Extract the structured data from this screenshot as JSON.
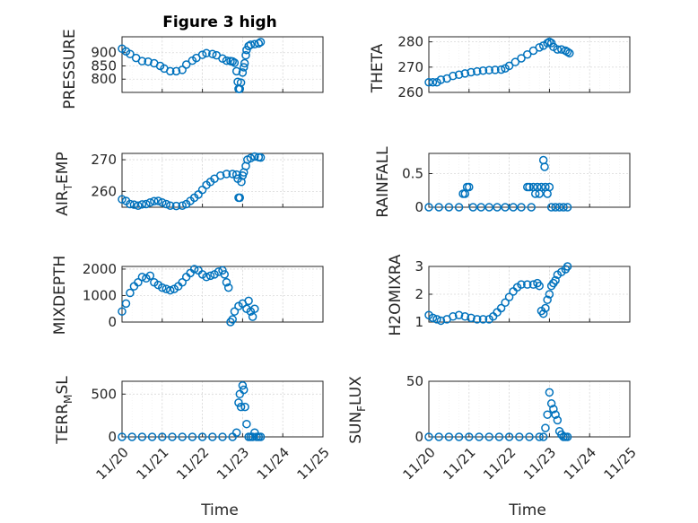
{
  "title": "Figure 3 high",
  "time_label": "Time",
  "colors": {
    "marker": "#0072BD",
    "axis": "#262626",
    "grid": "#d9d9d9"
  },
  "chart_data": [
    {
      "type": "scatter",
      "title": "Figure 3 high",
      "ylabel": "PRESSURE",
      "xlim": [
        0,
        5
      ],
      "ylim": [
        750,
        960
      ],
      "yticks": [
        800,
        850,
        900
      ],
      "xticks": [
        0,
        1,
        2,
        3,
        4,
        5
      ],
      "xticklabels": [],
      "points": [
        [
          0,
          915
        ],
        [
          0.1,
          905
        ],
        [
          0.2,
          895
        ],
        [
          0.35,
          880
        ],
        [
          0.5,
          868
        ],
        [
          0.65,
          866
        ],
        [
          0.8,
          860
        ],
        [
          0.95,
          850
        ],
        [
          1.05,
          840
        ],
        [
          1.2,
          830
        ],
        [
          1.35,
          830
        ],
        [
          1.5,
          835
        ],
        [
          1.6,
          855
        ],
        [
          1.75,
          870
        ],
        [
          1.85,
          880
        ],
        [
          2.0,
          892
        ],
        [
          2.1,
          898
        ],
        [
          2.25,
          895
        ],
        [
          2.35,
          890
        ],
        [
          2.5,
          878
        ],
        [
          2.6,
          870
        ],
        [
          2.7,
          868
        ],
        [
          2.75,
          867
        ],
        [
          2.8,
          862
        ],
        [
          2.85,
          830
        ],
        [
          2.88,
          790
        ],
        [
          2.9,
          763
        ],
        [
          2.93,
          763
        ],
        [
          2.96,
          787
        ],
        [
          3.0,
          825
        ],
        [
          3.03,
          845
        ],
        [
          3.05,
          860
        ],
        [
          3.08,
          890
        ],
        [
          3.1,
          910
        ],
        [
          3.15,
          925
        ],
        [
          3.2,
          930
        ],
        [
          3.3,
          932
        ],
        [
          3.4,
          935
        ],
        [
          3.45,
          940
        ]
      ]
    },
    {
      "type": "scatter",
      "ylabel": "THETA",
      "xlim": [
        0,
        5
      ],
      "ylim": [
        260,
        282
      ],
      "yticks": [
        260,
        270,
        280
      ],
      "xticks": [
        0,
        1,
        2,
        3,
        4,
        5
      ],
      "xticklabels": [],
      "points": [
        [
          0,
          264
        ],
        [
          0.1,
          264
        ],
        [
          0.2,
          264
        ],
        [
          0.3,
          265
        ],
        [
          0.45,
          265.5
        ],
        [
          0.6,
          266.5
        ],
        [
          0.75,
          267
        ],
        [
          0.9,
          267.5
        ],
        [
          1.05,
          268
        ],
        [
          1.2,
          268.3
        ],
        [
          1.35,
          268.6
        ],
        [
          1.5,
          268.8
        ],
        [
          1.65,
          268.9
        ],
        [
          1.8,
          269
        ],
        [
          1.9,
          269.5
        ],
        [
          2.0,
          270.5
        ],
        [
          2.15,
          272
        ],
        [
          2.3,
          273.5
        ],
        [
          2.45,
          275
        ],
        [
          2.6,
          276.5
        ],
        [
          2.75,
          277.8
        ],
        [
          2.85,
          278.5
        ],
        [
          2.95,
          279.5
        ],
        [
          3.0,
          280
        ],
        [
          3.05,
          279.5
        ],
        [
          3.1,
          278
        ],
        [
          3.2,
          277
        ],
        [
          3.3,
          277
        ],
        [
          3.4,
          276.5
        ],
        [
          3.45,
          276
        ],
        [
          3.5,
          275.5
        ]
      ]
    },
    {
      "type": "scatter",
      "ylabel": "AIR_TEMP",
      "xlim": [
        0,
        5
      ],
      "ylim": [
        255,
        272
      ],
      "yticks": [
        260,
        270
      ],
      "xticks": [
        0,
        1,
        2,
        3,
        4,
        5
      ],
      "xticklabels": [],
      "points": [
        [
          0,
          257.5
        ],
        [
          0.1,
          257
        ],
        [
          0.2,
          256
        ],
        [
          0.3,
          255.8
        ],
        [
          0.4,
          255.5
        ],
        [
          0.5,
          255.9
        ],
        [
          0.6,
          256
        ],
        [
          0.7,
          256.5
        ],
        [
          0.8,
          256.9
        ],
        [
          0.9,
          257
        ],
        [
          1.0,
          256.5
        ],
        [
          1.1,
          256
        ],
        [
          1.2,
          255.5
        ],
        [
          1.35,
          255.4
        ],
        [
          1.5,
          255.5
        ],
        [
          1.6,
          256
        ],
        [
          1.7,
          257
        ],
        [
          1.8,
          258
        ],
        [
          1.9,
          259
        ],
        [
          2.0,
          260.5
        ],
        [
          2.1,
          262
        ],
        [
          2.2,
          263
        ],
        [
          2.3,
          264
        ],
        [
          2.45,
          265
        ],
        [
          2.6,
          265.5
        ],
        [
          2.75,
          265.5
        ],
        [
          2.85,
          265.3
        ],
        [
          2.88,
          264
        ],
        [
          2.9,
          258
        ],
        [
          2.93,
          258
        ],
        [
          2.97,
          263
        ],
        [
          3.0,
          265
        ],
        [
          3.03,
          266
        ],
        [
          3.08,
          268
        ],
        [
          3.12,
          270
        ],
        [
          3.2,
          270.5
        ],
        [
          3.3,
          271
        ],
        [
          3.4,
          270.8
        ],
        [
          3.45,
          270.7
        ]
      ]
    },
    {
      "type": "scatter",
      "ylabel": "RAINFALL",
      "xlim": [
        0,
        5
      ],
      "ylim": [
        0,
        0.8
      ],
      "yticks": [
        0,
        0.5
      ],
      "xticks": [
        0,
        1,
        2,
        3,
        4,
        5
      ],
      "xticklabels": [],
      "points": [
        [
          0,
          0
        ],
        [
          0.25,
          0
        ],
        [
          0.5,
          0
        ],
        [
          0.75,
          0
        ],
        [
          0.85,
          0.2
        ],
        [
          0.9,
          0.2
        ],
        [
          0.95,
          0.3
        ],
        [
          1.0,
          0.3
        ],
        [
          1.1,
          0
        ],
        [
          1.3,
          0
        ],
        [
          1.5,
          0
        ],
        [
          1.7,
          0
        ],
        [
          1.9,
          0
        ],
        [
          2.1,
          0
        ],
        [
          2.3,
          0
        ],
        [
          2.45,
          0.3
        ],
        [
          2.5,
          0.3
        ],
        [
          2.55,
          0
        ],
        [
          2.6,
          0.3
        ],
        [
          2.65,
          0.2
        ],
        [
          2.7,
          0.3
        ],
        [
          2.75,
          0.2
        ],
        [
          2.8,
          0.3
        ],
        [
          2.85,
          0.7
        ],
        [
          2.88,
          0.6
        ],
        [
          2.9,
          0.3
        ],
        [
          2.95,
          0.2
        ],
        [
          3.0,
          0.3
        ],
        [
          3.05,
          0
        ],
        [
          3.15,
          0
        ],
        [
          3.25,
          0
        ],
        [
          3.35,
          0
        ],
        [
          3.45,
          0
        ]
      ]
    },
    {
      "type": "scatter",
      "ylabel": "MIXDEPTH",
      "xlim": [
        0,
        5
      ],
      "ylim": [
        0,
        2100
      ],
      "yticks": [
        0,
        1000,
        2000
      ],
      "xticks": [
        0,
        1,
        2,
        3,
        4,
        5
      ],
      "xticklabels": [],
      "points": [
        [
          0,
          400
        ],
        [
          0.1,
          700
        ],
        [
          0.2,
          1100
        ],
        [
          0.3,
          1350
        ],
        [
          0.4,
          1500
        ],
        [
          0.5,
          1700
        ],
        [
          0.6,
          1650
        ],
        [
          0.7,
          1750
        ],
        [
          0.8,
          1500
        ],
        [
          0.9,
          1400
        ],
        [
          1.0,
          1300
        ],
        [
          1.1,
          1250
        ],
        [
          1.2,
          1200
        ],
        [
          1.3,
          1250
        ],
        [
          1.4,
          1350
        ],
        [
          1.5,
          1500
        ],
        [
          1.6,
          1700
        ],
        [
          1.7,
          1850
        ],
        [
          1.8,
          2000
        ],
        [
          1.9,
          1950
        ],
        [
          2.0,
          1800
        ],
        [
          2.1,
          1700
        ],
        [
          2.2,
          1750
        ],
        [
          2.3,
          1800
        ],
        [
          2.4,
          1900
        ],
        [
          2.5,
          1950
        ],
        [
          2.55,
          1800
        ],
        [
          2.6,
          1500
        ],
        [
          2.65,
          1300
        ],
        [
          2.7,
          0
        ],
        [
          2.75,
          100
        ],
        [
          2.8,
          400
        ],
        [
          2.9,
          600
        ],
        [
          3.0,
          700
        ],
        [
          3.1,
          500
        ],
        [
          3.15,
          800
        ],
        [
          3.2,
          400
        ],
        [
          3.25,
          200
        ],
        [
          3.3,
          500
        ]
      ]
    },
    {
      "type": "scatter",
      "ylabel": "H2OMIXRA",
      "xlim": [
        0,
        5
      ],
      "ylim": [
        1,
        3
      ],
      "yticks": [
        1,
        2,
        3
      ],
      "xticks": [
        0,
        1,
        2,
        3,
        4,
        5
      ],
      "xticklabels": [],
      "points": [
        [
          0,
          1.25
        ],
        [
          0.1,
          1.15
        ],
        [
          0.2,
          1.1
        ],
        [
          0.3,
          1.05
        ],
        [
          0.45,
          1.1
        ],
        [
          0.6,
          1.2
        ],
        [
          0.75,
          1.25
        ],
        [
          0.9,
          1.2
        ],
        [
          1.05,
          1.15
        ],
        [
          1.2,
          1.1
        ],
        [
          1.35,
          1.1
        ],
        [
          1.5,
          1.1
        ],
        [
          1.6,
          1.2
        ],
        [
          1.7,
          1.35
        ],
        [
          1.8,
          1.5
        ],
        [
          1.9,
          1.7
        ],
        [
          2.0,
          1.9
        ],
        [
          2.1,
          2.1
        ],
        [
          2.2,
          2.25
        ],
        [
          2.3,
          2.35
        ],
        [
          2.45,
          2.35
        ],
        [
          2.6,
          2.35
        ],
        [
          2.7,
          2.4
        ],
        [
          2.75,
          2.3
        ],
        [
          2.8,
          1.4
        ],
        [
          2.85,
          1.3
        ],
        [
          2.9,
          1.5
        ],
        [
          2.95,
          1.8
        ],
        [
          3.0,
          2.0
        ],
        [
          3.05,
          2.3
        ],
        [
          3.1,
          2.4
        ],
        [
          3.15,
          2.5
        ],
        [
          3.2,
          2.7
        ],
        [
          3.3,
          2.8
        ],
        [
          3.4,
          2.9
        ],
        [
          3.45,
          3.0
        ]
      ]
    },
    {
      "type": "scatter",
      "ylabel": "TERR_MSL",
      "xlim": [
        0,
        5
      ],
      "ylim": [
        0,
        650
      ],
      "yticks": [
        0,
        500
      ],
      "xticks": [
        0,
        1,
        2,
        3,
        4,
        5
      ],
      "xticklabels": [
        "11/20",
        "11/21",
        "11/22",
        "11/23",
        "11/24",
        "11/25"
      ],
      "points": [
        [
          0,
          0
        ],
        [
          0.25,
          0
        ],
        [
          0.5,
          0
        ],
        [
          0.75,
          0
        ],
        [
          1.0,
          0
        ],
        [
          1.25,
          0
        ],
        [
          1.5,
          0
        ],
        [
          1.75,
          0
        ],
        [
          2.0,
          0
        ],
        [
          2.25,
          0
        ],
        [
          2.5,
          0
        ],
        [
          2.75,
          0
        ],
        [
          2.85,
          50
        ],
        [
          2.9,
          400
        ],
        [
          2.93,
          500
        ],
        [
          2.96,
          350
        ],
        [
          3.0,
          600
        ],
        [
          3.03,
          550
        ],
        [
          3.06,
          350
        ],
        [
          3.1,
          150
        ],
        [
          3.15,
          0
        ],
        [
          3.2,
          0
        ],
        [
          3.25,
          0
        ],
        [
          3.3,
          50
        ],
        [
          3.35,
          0
        ],
        [
          3.4,
          0
        ],
        [
          3.45,
          0
        ]
      ]
    },
    {
      "type": "scatter",
      "ylabel": "SUN_FLUX",
      "xlim": [
        0,
        5
      ],
      "ylim": [
        0,
        50
      ],
      "yticks": [
        0,
        50
      ],
      "xticks": [
        0,
        1,
        2,
        3,
        4,
        5
      ],
      "xticklabels": [
        "11/20",
        "11/21",
        "11/22",
        "11/23",
        "11/24",
        "11/25"
      ],
      "points": [
        [
          0,
          0
        ],
        [
          0.25,
          0
        ],
        [
          0.5,
          0
        ],
        [
          0.75,
          0
        ],
        [
          1.0,
          0
        ],
        [
          1.25,
          0
        ],
        [
          1.5,
          0
        ],
        [
          1.75,
          0
        ],
        [
          2.0,
          0
        ],
        [
          2.25,
          0
        ],
        [
          2.5,
          0
        ],
        [
          2.75,
          0
        ],
        [
          2.85,
          0
        ],
        [
          2.9,
          8
        ],
        [
          2.95,
          20
        ],
        [
          3.0,
          40
        ],
        [
          3.05,
          30
        ],
        [
          3.1,
          25
        ],
        [
          3.15,
          20
        ],
        [
          3.2,
          15
        ],
        [
          3.25,
          5
        ],
        [
          3.3,
          2
        ],
        [
          3.35,
          0
        ],
        [
          3.4,
          0
        ],
        [
          3.45,
          0
        ]
      ]
    }
  ]
}
